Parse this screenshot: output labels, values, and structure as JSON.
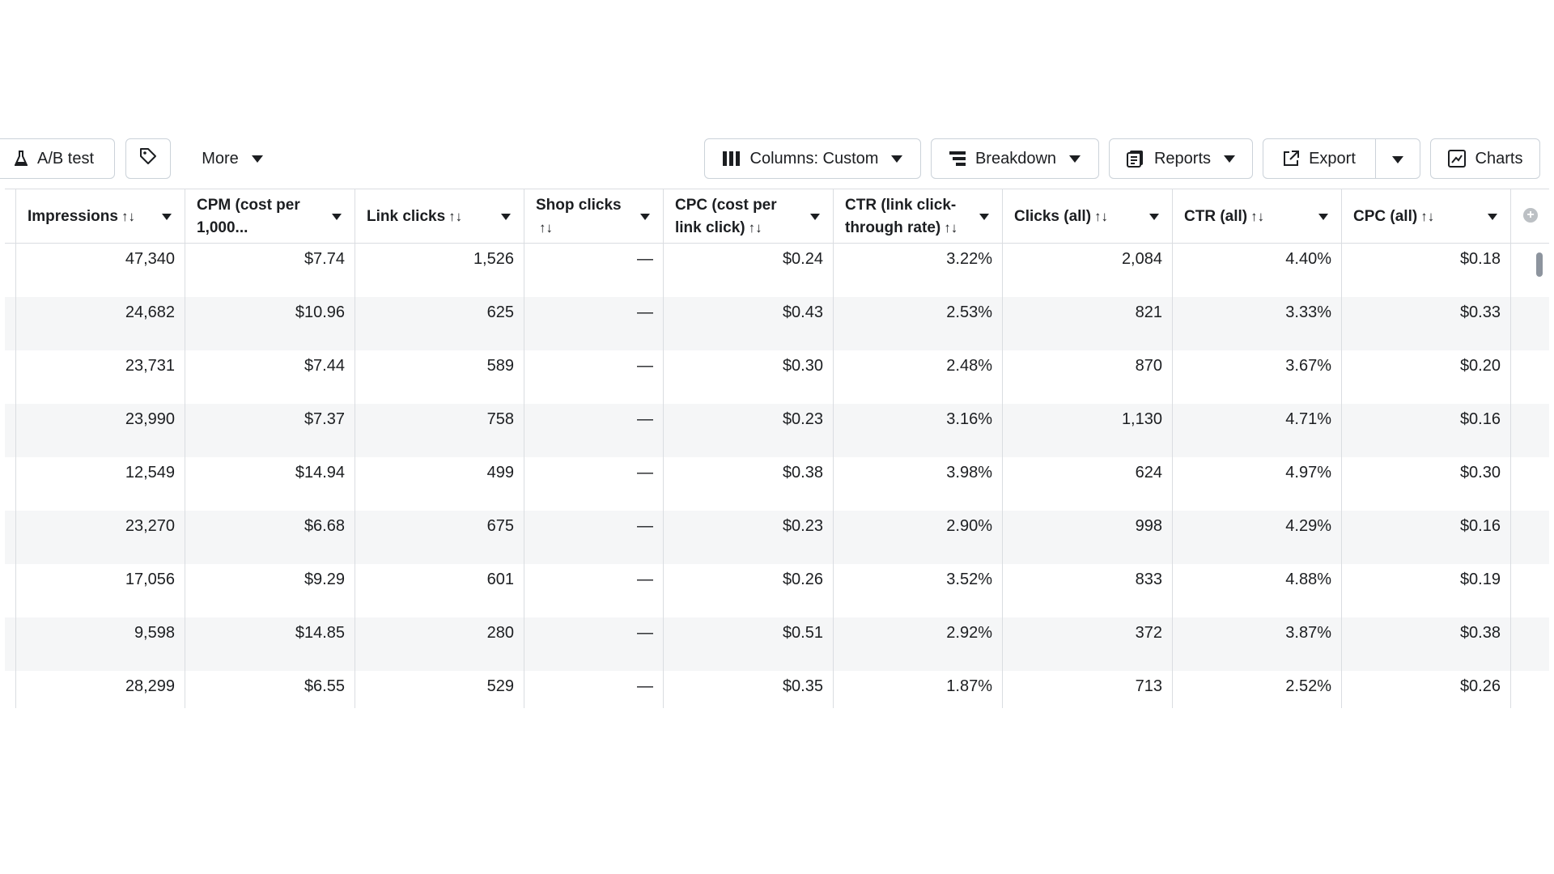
{
  "toolbar": {
    "ab_test_label": "A/B test",
    "more_label": "More",
    "columns_label": "Columns: Custom",
    "breakdown_label": "Breakdown",
    "reports_label": "Reports",
    "export_label": "Export",
    "charts_label": "Charts"
  },
  "table": {
    "sort_glyph": "↑↓",
    "headers": [
      {
        "line1": "Impressions",
        "line2": ""
      },
      {
        "line1": "CPM (cost per",
        "line2": "1,000..."
      },
      {
        "line1": "Link clicks",
        "line2": ""
      },
      {
        "line1": "Shop clicks",
        "line2": ""
      },
      {
        "line1": "CPC (cost per",
        "line2": "link click)"
      },
      {
        "line1": "CTR (link click-",
        "line2": "through rate)"
      },
      {
        "line1": "Clicks (all)",
        "line2": ""
      },
      {
        "line1": "CTR (all)",
        "line2": ""
      },
      {
        "line1": "CPC (all)",
        "line2": ""
      }
    ],
    "rows": [
      [
        "47,340",
        "$7.74",
        "1,526",
        "—",
        "$0.24",
        "3.22%",
        "2,084",
        "4.40%",
        "$0.18"
      ],
      [
        "24,682",
        "$10.96",
        "625",
        "—",
        "$0.43",
        "2.53%",
        "821",
        "3.33%",
        "$0.33"
      ],
      [
        "23,731",
        "$7.44",
        "589",
        "—",
        "$0.30",
        "2.48%",
        "870",
        "3.67%",
        "$0.20"
      ],
      [
        "23,990",
        "$7.37",
        "758",
        "—",
        "$0.23",
        "3.16%",
        "1,130",
        "4.71%",
        "$0.16"
      ],
      [
        "12,549",
        "$14.94",
        "499",
        "—",
        "$0.38",
        "3.98%",
        "624",
        "4.97%",
        "$0.30"
      ],
      [
        "23,270",
        "$6.68",
        "675",
        "—",
        "$0.23",
        "2.90%",
        "998",
        "4.29%",
        "$0.16"
      ],
      [
        "17,056",
        "$9.29",
        "601",
        "—",
        "$0.26",
        "3.52%",
        "833",
        "4.88%",
        "$0.19"
      ],
      [
        "9,598",
        "$14.85",
        "280",
        "—",
        "$0.51",
        "2.92%",
        "372",
        "3.87%",
        "$0.38"
      ],
      [
        "28,299",
        "$6.55",
        "529",
        "—",
        "$0.35",
        "1.87%",
        "713",
        "2.52%",
        "$0.26"
      ]
    ]
  }
}
